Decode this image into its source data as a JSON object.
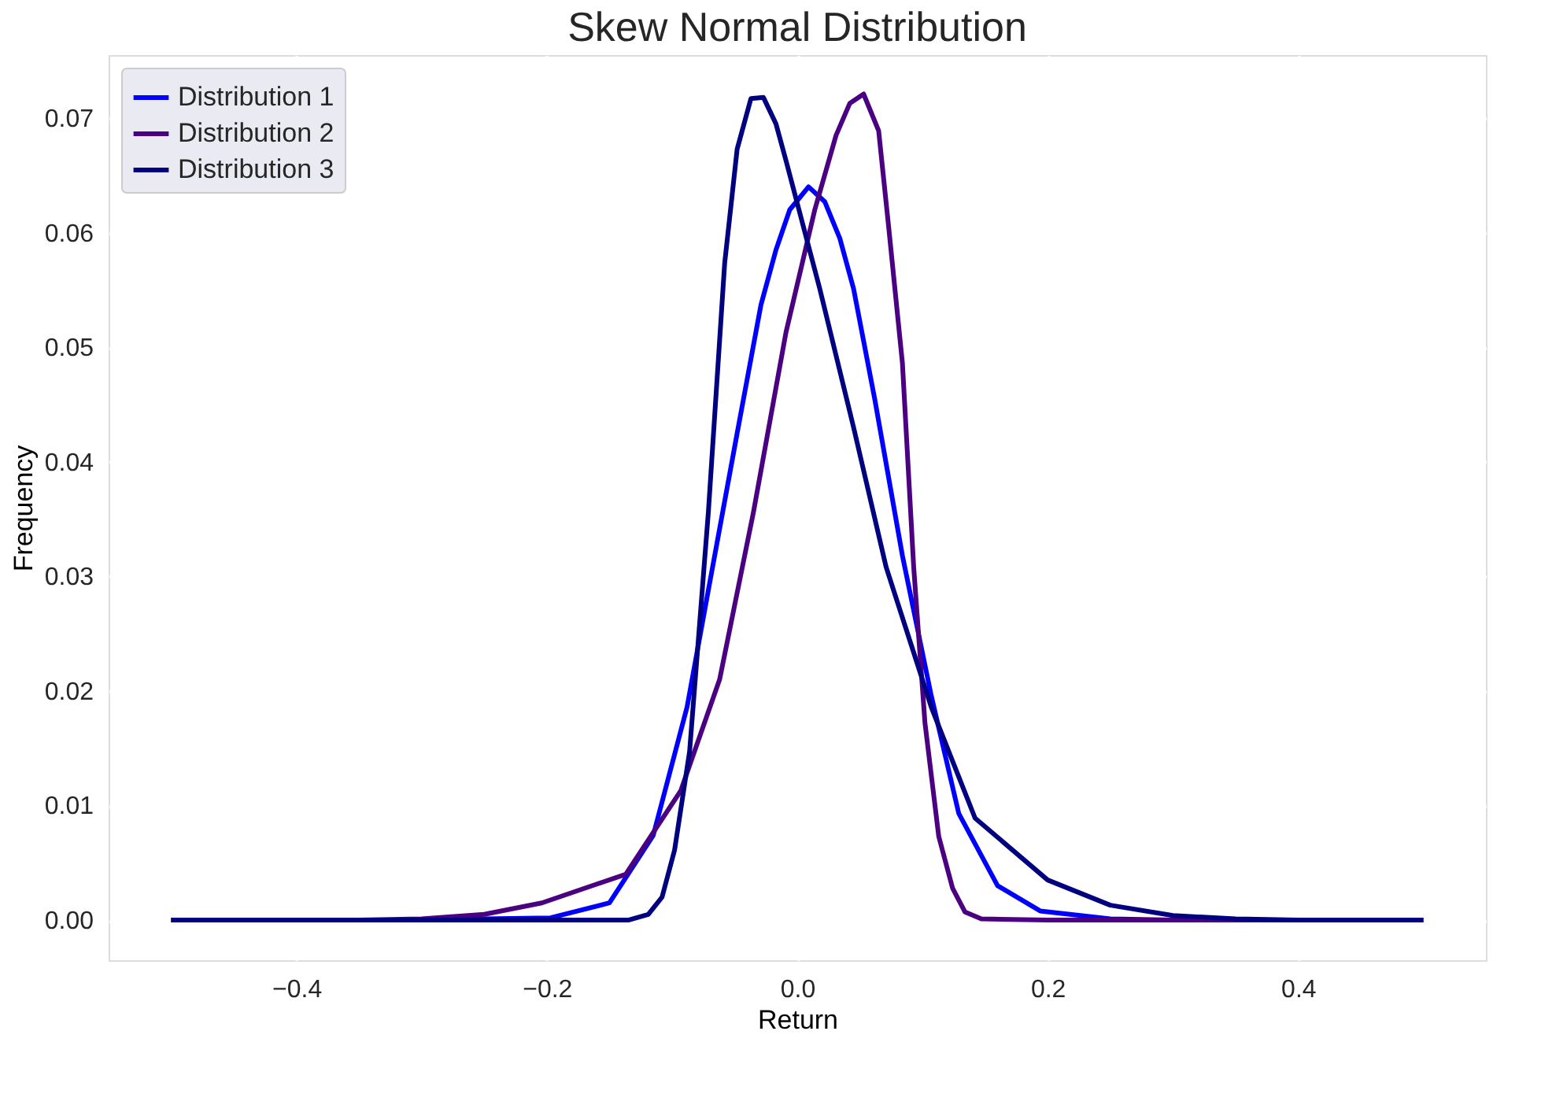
{
  "chart_data": {
    "type": "line",
    "title": "Skew Normal Distribution",
    "xlabel": "Return",
    "ylabel": "Frequency",
    "xlim": [
      -0.55,
      0.55
    ],
    "ylim": [
      -0.0035,
      0.0755
    ],
    "xticks": [
      {
        "value": -0.4,
        "label": "−0.4"
      },
      {
        "value": -0.2,
        "label": "−0.2"
      },
      {
        "value": 0,
        "label": "0.0"
      },
      {
        "value": 0.2,
        "label": "0.2"
      },
      {
        "value": 0.4,
        "label": "0.4"
      }
    ],
    "yticks": [
      {
        "value": 0,
        "label": "0.00"
      },
      {
        "value": 0.01,
        "label": "0.01"
      },
      {
        "value": 0.02,
        "label": "0.02"
      },
      {
        "value": 0.03,
        "label": "0.03"
      },
      {
        "value": 0.04,
        "label": "0.04"
      },
      {
        "value": 0.05,
        "label": "0.05"
      },
      {
        "value": 0.06,
        "label": "0.06"
      },
      {
        "value": 0.07,
        "label": "0.07"
      }
    ],
    "grid": true,
    "legend": "top left",
    "line_style": "solid",
    "marker": "none",
    "series": [
      {
        "name": "Distribution 1",
        "color": "#0000ff",
        "x": [
          -0.5,
          -0.3,
          -0.25,
          -0.197,
          -0.15,
          -0.115,
          -0.088,
          -0.071,
          -0.048,
          -0.029,
          -0.017,
          -0.006,
          0.009,
          0.022,
          0.034,
          0.045,
          0.062,
          0.084,
          0.107,
          0.129,
          0.16,
          0.194,
          0.25,
          0.3,
          0.5
        ],
        "values": [
          0,
          0,
          0.0001,
          0.0002,
          0.0015,
          0.0074,
          0.0186,
          0.0288,
          0.0425,
          0.0537,
          0.0585,
          0.062,
          0.064,
          0.0627,
          0.0595,
          0.0551,
          0.0454,
          0.0318,
          0.0196,
          0.0093,
          0.003,
          0.0008,
          0.0001,
          0,
          0
        ]
      },
      {
        "name": "Distribution 2",
        "color": "#4b0082",
        "x": [
          -0.5,
          -0.35,
          -0.3,
          -0.25,
          -0.204,
          -0.137,
          -0.093,
          -0.062,
          -0.035,
          -0.009,
          0.014,
          0.031,
          0.042,
          0.053,
          0.065,
          0.073,
          0.084,
          0.093,
          0.102,
          0.113,
          0.124,
          0.134,
          0.147,
          0.2,
          0.5
        ],
        "values": [
          0,
          0,
          0.0001,
          0.0005,
          0.0015,
          0.004,
          0.0113,
          0.021,
          0.0356,
          0.0513,
          0.062,
          0.0685,
          0.0713,
          0.0721,
          0.0689,
          0.0605,
          0.0486,
          0.0308,
          0.0172,
          0.0073,
          0.0028,
          0.0007,
          0.0001,
          0,
          0
        ]
      },
      {
        "name": "Distribution 3",
        "color": "#000080",
        "x": [
          -0.5,
          -0.135,
          -0.119,
          -0.108,
          -0.098,
          -0.086,
          -0.071,
          -0.058,
          -0.048,
          -0.037,
          -0.027,
          -0.017,
          -0.009,
          0.018,
          0.045,
          0.071,
          0.107,
          0.142,
          0.2,
          0.25,
          0.3,
          0.35,
          0.4,
          0.5
        ],
        "values": [
          0,
          0,
          0.0005,
          0.002,
          0.0061,
          0.0147,
          0.0356,
          0.0573,
          0.0673,
          0.0717,
          0.0718,
          0.0695,
          0.0663,
          0.0551,
          0.043,
          0.0308,
          0.0186,
          0.0089,
          0.0035,
          0.0013,
          0.0004,
          0.0001,
          0,
          0
        ]
      }
    ]
  }
}
